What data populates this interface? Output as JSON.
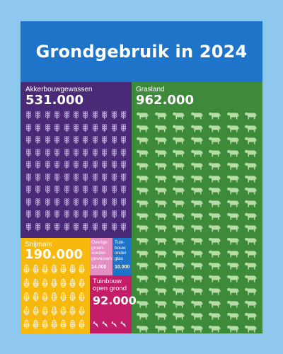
{
  "title": "Grondgebruik in 2024",
  "colors": {
    "background": "#8fc8ee",
    "header": "#1e74c8",
    "akkerbouw": "#4a2a76",
    "grasland": "#3d8a3b",
    "snijmais": "#f7b90d",
    "overige_groenvoedergewassen": "#e48ec3",
    "tuinbouw_onder_glas": "#1e74c8",
    "tuinbouw_open_grond": "#c41d67"
  },
  "chart_data": {
    "type": "treemap",
    "title": "Grondgebruik in 2024",
    "segments": [
      {
        "id": "akker",
        "label": "Akkerbouwgewassen",
        "value": 531000,
        "value_text": "531.000",
        "icon": "wheat-icon"
      },
      {
        "id": "gras",
        "label": "Grasland",
        "value": 962000,
        "value_text": "962.000",
        "icon": "cow-icon"
      },
      {
        "id": "snij",
        "label": "Snijmaïs",
        "value": 190000,
        "value_text": "190.000",
        "icon": "corn-icon"
      },
      {
        "id": "overig",
        "label": "Overige\ngroen-\nvoeder-\ngewassen",
        "value": 14000,
        "value_text": "14.000",
        "icon": ""
      },
      {
        "id": "glas",
        "label": "Tuin-\nbouw\nonder\nglas",
        "value": 10000,
        "value_text": "10.000",
        "icon": ""
      },
      {
        "id": "tuin",
        "label": "Tuinbouw\nopen grond",
        "value": 92000,
        "value_text": "92.000",
        "icon": "carrot-icon"
      }
    ]
  }
}
